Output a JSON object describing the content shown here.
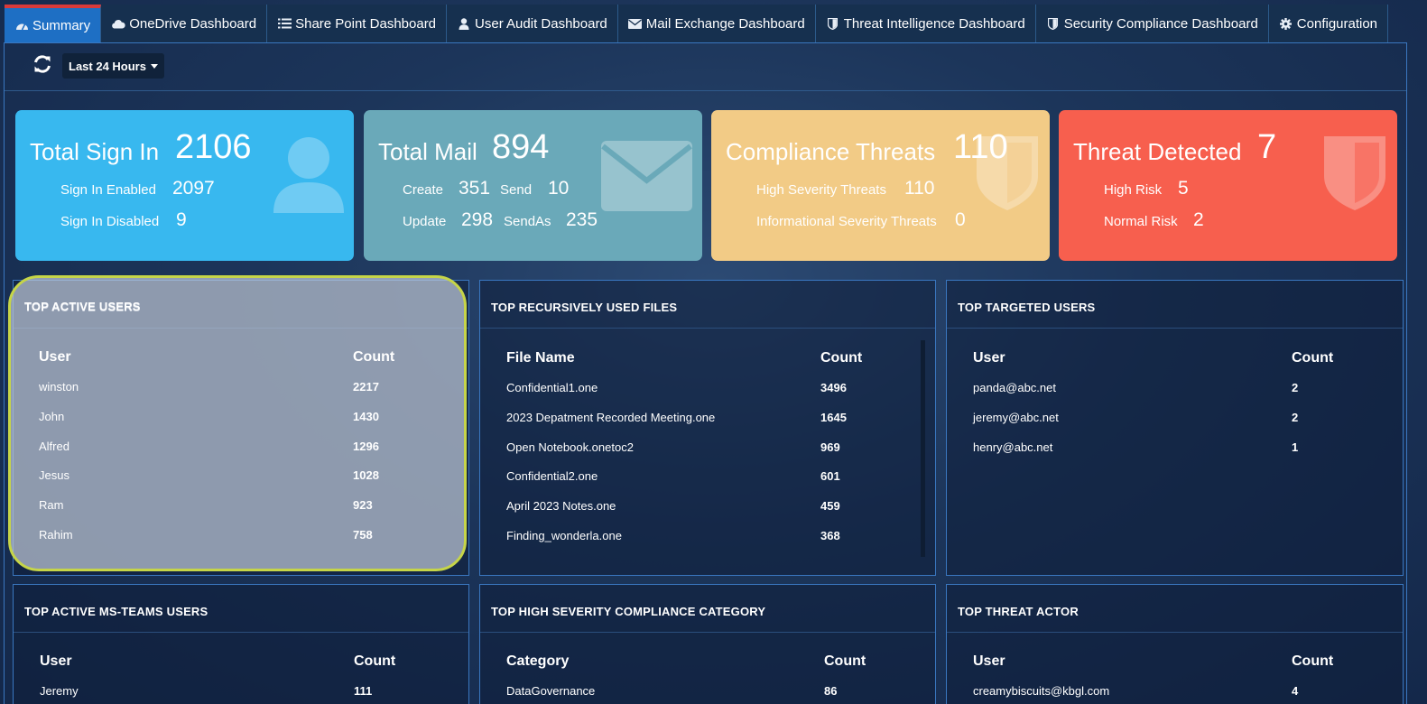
{
  "nav": {
    "tabs": [
      {
        "label": "Summary",
        "icon": "dashboard-icon"
      },
      {
        "label": "OneDrive Dashboard",
        "icon": "cloud-icon"
      },
      {
        "label": "Share Point Dashboard",
        "icon": "list-icon"
      },
      {
        "label": "User Audit Dashboard",
        "icon": "user-icon"
      },
      {
        "label": "Mail Exchange Dashboard",
        "icon": "envelope-icon"
      },
      {
        "label": "Threat Intelligence Dashboard",
        "icon": "shield-icon"
      },
      {
        "label": "Security Compliance Dashboard",
        "icon": "shield-icon"
      },
      {
        "label": "Configuration",
        "icon": "gear-icon"
      }
    ],
    "active": "Summary"
  },
  "toolbar": {
    "range_label": "Last 24 Hours",
    "refresh_icon": "refresh-icon"
  },
  "cards": {
    "signin": {
      "title": "Total Sign In",
      "total": "2106",
      "enabled_label": "Sign In Enabled",
      "enabled": "2097",
      "disabled_label": "Sign In Disabled",
      "disabled": "9",
      "color": "#38b8ef",
      "icon": "user-icon"
    },
    "mail": {
      "title": "Total Mail",
      "total": "894",
      "create_label": "Create",
      "create": "351",
      "send_label": "Send",
      "send": "10",
      "update_label": "Update",
      "update": "298",
      "sendas_label": "SendAs",
      "sendas": "235",
      "color": "#6aa9b9",
      "icon": "envelope-icon"
    },
    "compliance": {
      "title": "Compliance Threats",
      "total": "110",
      "high_label": "High Severity Threats",
      "high": "110",
      "info_label": "Informational Severity Threats",
      "info": "0",
      "color": "#f2cb86",
      "icon": "shield-icon"
    },
    "threat": {
      "title": "Threat Detected",
      "total": "7",
      "high_label": "High Risk",
      "high": "5",
      "normal_label": "Normal Risk",
      "normal": "2",
      "color": "#f75f4e",
      "icon": "shield-icon"
    }
  },
  "panels": {
    "active_users": {
      "title": "TOP ACTIVE USERS",
      "headers": [
        "User",
        "Count"
      ],
      "rows": [
        [
          "winston",
          "2217"
        ],
        [
          "John",
          "1430"
        ],
        [
          "Alfred",
          "1296"
        ],
        [
          "Jesus",
          "1028"
        ],
        [
          "Ram",
          "923"
        ],
        [
          "Rahim",
          "758"
        ]
      ]
    },
    "files": {
      "title": "TOP RECURSIVELY USED FILES",
      "headers": [
        "File Name",
        "Count"
      ],
      "rows": [
        [
          "Confidential1.one",
          "3496"
        ],
        [
          "2023 Depatment Recorded Meeting.one",
          "1645"
        ],
        [
          "Open Notebook.onetoc2",
          "969"
        ],
        [
          "Confidential2.one",
          "601"
        ],
        [
          "April 2023 Notes.one",
          "459"
        ],
        [
          "Finding_wonderla.one",
          "368"
        ]
      ]
    },
    "targeted": {
      "title": "TOP TARGETED USERS",
      "headers": [
        "User",
        "Count"
      ],
      "rows": [
        [
          "panda@abc.net",
          "2"
        ],
        [
          "jeremy@abc.net",
          "2"
        ],
        [
          "henry@abc.net",
          "1"
        ]
      ]
    },
    "teams": {
      "title": "TOP ACTIVE MS-TEAMS USERS",
      "headers": [
        "User",
        "Count"
      ],
      "rows": [
        [
          "Jeremy",
          "111"
        ]
      ]
    },
    "compliance_cat": {
      "title": "TOP HIGH SEVERITY COMPLIANCE CATEGORY",
      "headers": [
        "Category",
        "Count"
      ],
      "rows": [
        [
          "DataGovernance",
          "86"
        ]
      ]
    },
    "threat_actor": {
      "title": "TOP THREAT ACTOR",
      "headers": [
        "User",
        "Count"
      ],
      "rows": [
        [
          "creamybiscuits@kbgl.com",
          "4"
        ]
      ]
    }
  }
}
